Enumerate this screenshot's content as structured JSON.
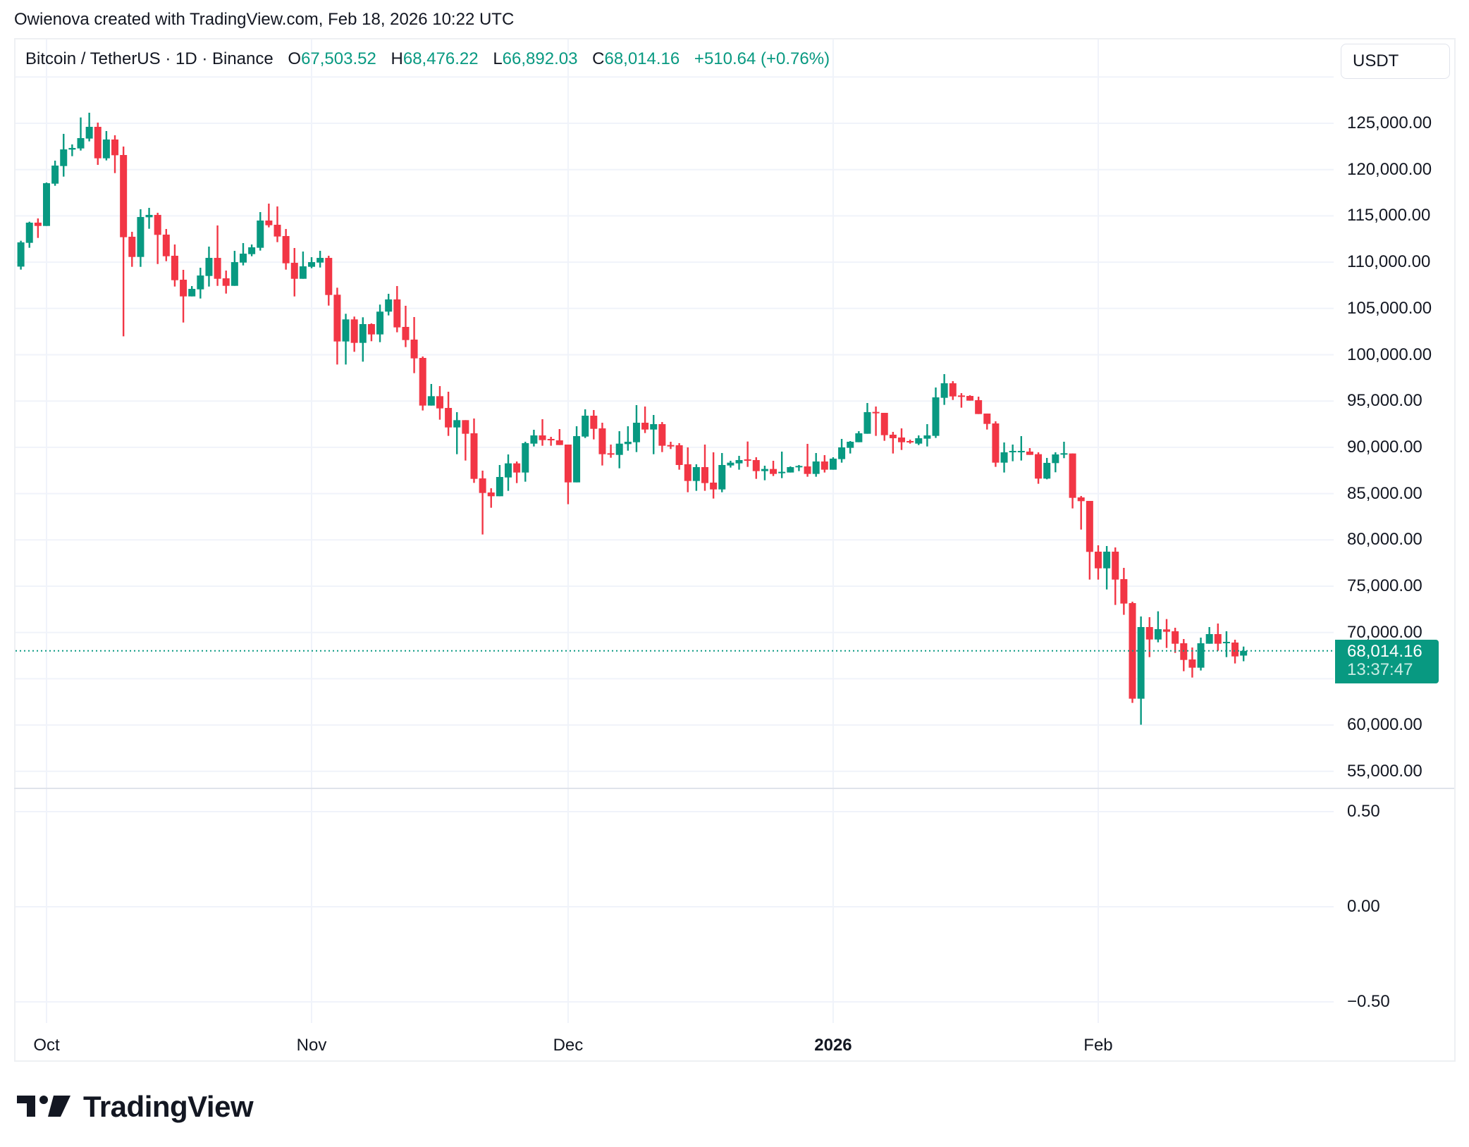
{
  "attribution": "Owienova created with TradingView.com, Feb 18, 2026 10:22 UTC",
  "legend": {
    "symbol": "Bitcoin / TetherUS · 1D · Binance",
    "open_label": "O",
    "open": "67,503.52",
    "high_label": "H",
    "high": "68,476.22",
    "low_label": "L",
    "low": "66,892.03",
    "close_label": "C",
    "close": "68,014.16",
    "change": "+510.64 (+0.76%)"
  },
  "currency_button": "USDT",
  "price_tag": {
    "price": "68,014.16",
    "countdown": "13:37:47"
  },
  "logo_text": "TradingView",
  "colors": {
    "up": "#089981",
    "down": "#f23645",
    "grid": "#f0f3fa",
    "text": "#131722",
    "border": "#e0e3eb"
  },
  "chart_data": {
    "type": "candlestick",
    "title": "Bitcoin / TetherUS · 1D · Binance",
    "ylabel": "USDT",
    "price_axis": {
      "ticks": [
        125000,
        120000,
        115000,
        110000,
        105000,
        100000,
        95000,
        90000,
        85000,
        80000,
        75000,
        70000,
        65000,
        60000,
        55000
      ],
      "tick_labels": [
        "125,000.00",
        "120,000.00",
        "115,000.00",
        "110,000.00",
        "105,000.00",
        "100,000.00",
        "95,000.00",
        "90,000.00",
        "85,000.00",
        "80,000.00",
        "75,000.00",
        "70,000.00",
        "",
        "60,000.00",
        "55,000.00"
      ],
      "range": [
        53800,
        130800
      ]
    },
    "indicator_axis": {
      "ticks": [
        0.5,
        0,
        -0.5
      ],
      "tick_labels": [
        "0.50",
        "0.00",
        "−0.50"
      ]
    },
    "time_axis": {
      "labels": [
        {
          "text": "Oct",
          "index": 3,
          "bold": false
        },
        {
          "text": "Nov",
          "index": 34,
          "bold": false
        },
        {
          "text": "Dec",
          "index": 64,
          "bold": false
        },
        {
          "text": "2026",
          "index": 95,
          "bold": true
        },
        {
          "text": "Feb",
          "index": 126,
          "bold": false
        }
      ]
    },
    "first_date": "2025-09-28",
    "last_date": "2026-02-18",
    "current_price": 68014.16,
    "grid": true,
    "ohlc": [
      [
        109520,
        112315,
        109194,
        112137
      ],
      [
        112086,
        114369,
        111553,
        114268
      ],
      [
        114268,
        114724,
        112619,
        113912
      ],
      [
        113912,
        118606,
        113912,
        118530
      ],
      [
        118479,
        120965,
        118251,
        120432
      ],
      [
        120382,
        123858,
        119240,
        122182
      ],
      [
        122158,
        122716,
        121447,
        122335
      ],
      [
        122285,
        125631,
        122056,
        123401
      ],
      [
        123350,
        126141,
        123046,
        124619
      ],
      [
        124619,
        125075,
        120509,
        121219
      ],
      [
        121219,
        124162,
        120991,
        123249
      ],
      [
        123249,
        123706,
        119621,
        121549
      ],
      [
        121575,
        122488,
        101989,
        112696
      ],
      [
        112746,
        113278,
        109498,
        110564
      ],
      [
        110564,
        115714,
        109498,
        114877
      ],
      [
        114851,
        115866,
        113608,
        115105
      ],
      [
        115105,
        115333,
        109803,
        112949
      ],
      [
        112974,
        113583,
        110107,
        110640
      ],
      [
        110691,
        111909,
        107367,
        108052
      ],
      [
        108103,
        109168,
        103486,
        106302
      ],
      [
        106302,
        107418,
        106302,
        107113
      ],
      [
        107063,
        109397,
        106073,
        108560
      ],
      [
        108509,
        111680,
        107367,
        110462
      ],
      [
        110462,
        113963,
        107443,
        108204
      ],
      [
        108255,
        109092,
        106606,
        107443
      ],
      [
        107443,
        111223,
        107443,
        110005
      ],
      [
        109955,
        112061,
        109650,
        110919
      ],
      [
        110868,
        111909,
        110640,
        111604
      ],
      [
        111553,
        115410,
        111249,
        114496
      ],
      [
        114496,
        116323,
        113760,
        113989
      ],
      [
        114039,
        116018,
        112162,
        112771
      ],
      [
        112822,
        113583,
        109194,
        109879
      ],
      [
        109930,
        111528,
        106302,
        108204
      ],
      [
        108204,
        111147,
        108204,
        109549
      ],
      [
        109498,
        110538,
        109346,
        110005
      ],
      [
        109955,
        111223,
        109422,
        110462
      ],
      [
        110462,
        110690,
        105312,
        106454
      ],
      [
        106483,
        107244,
        98948,
        101434
      ],
      [
        101434,
        104427,
        98948,
        103819
      ],
      [
        103819,
        104123,
        100317,
        101282
      ],
      [
        101282,
        104047,
        99252,
        103311
      ],
      [
        103311,
        103387,
        101459,
        102195
      ],
      [
        102195,
        105417,
        101358,
        104656
      ],
      [
        104656,
        106584,
        104250,
        105975
      ],
      [
        105975,
        107421,
        102423,
        102956
      ],
      [
        103007,
        105290,
        100825,
        101586
      ],
      [
        101637,
        104072,
        98009,
        99607
      ],
      [
        99658,
        99810,
        93975,
        94508
      ],
      [
        94508,
        96842,
        94508,
        95523
      ],
      [
        95523,
        96614,
        92986,
        94203
      ],
      [
        94254,
        96005,
        91235,
        92148
      ],
      [
        92148,
        93798,
        89257,
        92935
      ],
      [
        92935,
        92935,
        88571,
        91464
      ],
      [
        91514,
        93113,
        86161,
        86593
      ],
      [
        86643,
        87480,
        80580,
        85070
      ],
      [
        85121,
        85578,
        83472,
        84715
      ],
      [
        84715,
        88090,
        84715,
        86796
      ],
      [
        86745,
        89231,
        85299,
        88267
      ],
      [
        88267,
        88470,
        86136,
        87277
      ],
      [
        87277,
        90601,
        86288,
        90449
      ],
      [
        90398,
        91895,
        90093,
        91286
      ],
      [
        91286,
        93036,
        90170,
        90779
      ],
      [
        90906,
        91134,
        90170,
        90804
      ],
      [
        90753,
        91971,
        90246,
        90246
      ],
      [
        90297,
        90297,
        83853,
        86212
      ],
      [
        86212,
        92275,
        86212,
        91210
      ],
      [
        91159,
        94102,
        91007,
        93417
      ],
      [
        93417,
        94026,
        90855,
        91996
      ],
      [
        92047,
        92656,
        88038,
        89256
      ],
      [
        89358,
        90297,
        88875,
        89282
      ],
      [
        89180,
        91743,
        87734,
        90398
      ],
      [
        90347,
        92275,
        89637,
        90601
      ],
      [
        90550,
        94558,
        89485,
        92656
      ],
      [
        92656,
        94406,
        91540,
        91920
      ],
      [
        91920,
        93493,
        89256,
        92504
      ],
      [
        92505,
        92733,
        89486,
        90171
      ],
      [
        90247,
        90602,
        89816,
        90196
      ],
      [
        90221,
        90450,
        87583,
        88090
      ],
      [
        88167,
        89993,
        85147,
        86365
      ],
      [
        86365,
        88167,
        85300,
        87862
      ],
      [
        87862,
        90298,
        85300,
        86137
      ],
      [
        86188,
        89460,
        84462,
        85452
      ],
      [
        85452,
        89384,
        85147,
        88090
      ],
      [
        88040,
        88547,
        87811,
        88344
      ],
      [
        88268,
        89080,
        87583,
        88623
      ],
      [
        88699,
        90626,
        87887,
        88598
      ],
      [
        88623,
        88928,
        86594,
        87431
      ],
      [
        87431,
        88014,
        86441,
        87659
      ],
      [
        87659,
        88547,
        86898,
        87126
      ],
      [
        87304,
        89537,
        86670,
        87355
      ],
      [
        87279,
        87938,
        87279,
        87862
      ],
      [
        87888,
        88090,
        87431,
        87989
      ],
      [
        87938,
        90374,
        86822,
        87126
      ],
      [
        87126,
        89384,
        86822,
        88471
      ],
      [
        88471,
        89156,
        87279,
        87583
      ],
      [
        87583,
        88928,
        87583,
        88776
      ],
      [
        88725,
        90907,
        88344,
        89993
      ],
      [
        89942,
        90678,
        89333,
        90602
      ],
      [
        90551,
        91744,
        90551,
        91515
      ],
      [
        91465,
        94788,
        91465,
        93799
      ],
      [
        93824,
        94408,
        91236,
        93773
      ],
      [
        93723,
        93723,
        90704,
        91312
      ],
      [
        91363,
        91668,
        89333,
        90983
      ],
      [
        91059,
        92048,
        89714,
        90551
      ],
      [
        90678,
        90830,
        90399,
        90526
      ],
      [
        90399,
        91287,
        90247,
        90983
      ],
      [
        90932,
        92505,
        90095,
        91287
      ],
      [
        91236,
        96463,
        91008,
        95397
      ],
      [
        95346,
        97909,
        94585,
        96919
      ],
      [
        96919,
        97148,
        95118,
        95498
      ],
      [
        95600,
        95854,
        94281,
        95498
      ],
      [
        95549,
        95625,
        95042,
        95042
      ],
      [
        95093,
        95473,
        93596,
        93596
      ],
      [
        93647,
        93647,
        91921,
        92530
      ],
      [
        92581,
        92809,
        87887,
        88344
      ],
      [
        88344,
        90526,
        87279,
        89460
      ],
      [
        89486,
        90298,
        88496,
        89613
      ],
      [
        89486,
        91211,
        88573,
        89613
      ],
      [
        89537,
        89917,
        89181,
        89181
      ],
      [
        89258,
        89462,
        86062,
        86620
      ],
      [
        86620,
        88853,
        86544,
        88320
      ],
      [
        88294,
        89461,
        87305,
        89233
      ],
      [
        89284,
        90603,
        88827,
        89360
      ],
      [
        89334,
        89334,
        83398,
        84540
      ],
      [
        84590,
        84743,
        81115,
        84184
      ],
      [
        84210,
        84210,
        75711,
        78705
      ],
      [
        78730,
        79415,
        75711,
        76929
      ],
      [
        76929,
        79339,
        74646,
        78730
      ],
      [
        78730,
        79187,
        72971,
        75711
      ],
      [
        75762,
        76979,
        71905,
        73123
      ],
      [
        73174,
        73326,
        62392,
        62848
      ],
      [
        62848,
        71727,
        60032,
        70586
      ],
      [
        70586,
        71651,
        67339,
        69241
      ],
      [
        69241,
        72286,
        68937,
        70357
      ],
      [
        70332,
        71449,
        68328,
        70079
      ],
      [
        70129,
        70510,
        67796,
        68784
      ],
      [
        68835,
        69292,
        65816,
        67034
      ],
      [
        67085,
        68379,
        65131,
        66197
      ],
      [
        66197,
        69444,
        65892,
        68835
      ],
      [
        68784,
        70586,
        68784,
        69825
      ],
      [
        69825,
        70967,
        68023,
        68784
      ],
      [
        68886,
        70129,
        67339,
        68987
      ],
      [
        68911,
        69216,
        66654,
        67414
      ],
      [
        67503.52,
        68476.22,
        66892.03,
        68014.16
      ]
    ]
  }
}
